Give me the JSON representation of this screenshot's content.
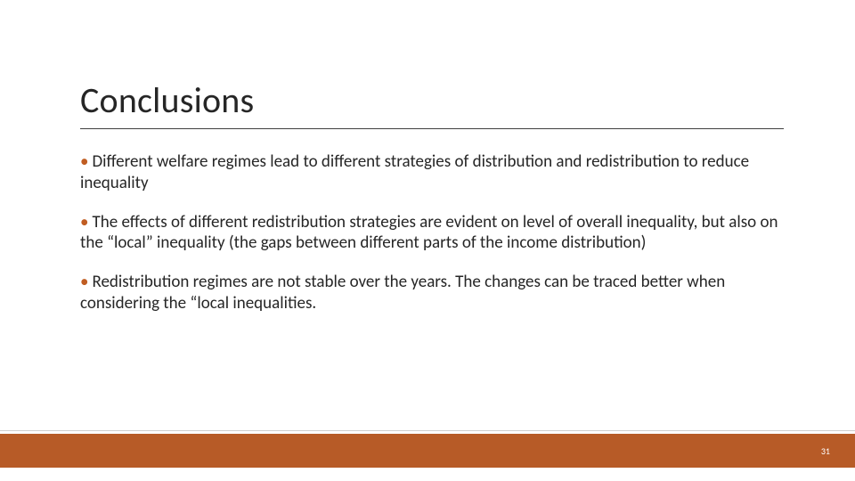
{
  "slide": {
    "title": "Conclusions",
    "bullets": [
      "Different welfare regimes lead to different strategies of distribution and redistribution to reduce inequality",
      "The effects of different redistribution strategies are evident on level of overall inequality,  but also on the “local” inequality (the gaps between different parts of the income distribution)",
      "Redistribution regimes are not stable over the years. The changes can be traced better when considering the “local inequalities."
    ],
    "page_number": "31"
  },
  "style": {
    "background_color": "#ffffff",
    "title_color": "#262626",
    "title_fontsize": 40,
    "title_underline_color": "#404040",
    "body_color": "#262626",
    "body_fontsize": 19,
    "bullet_mark_color": "#c05d22",
    "bottom_bar_color": "#b75b27",
    "bottom_bar_height": 38,
    "page_number_color": "#ffffff",
    "page_number_fontsize": 10,
    "divider_line_color": "#cfcfcf"
  }
}
